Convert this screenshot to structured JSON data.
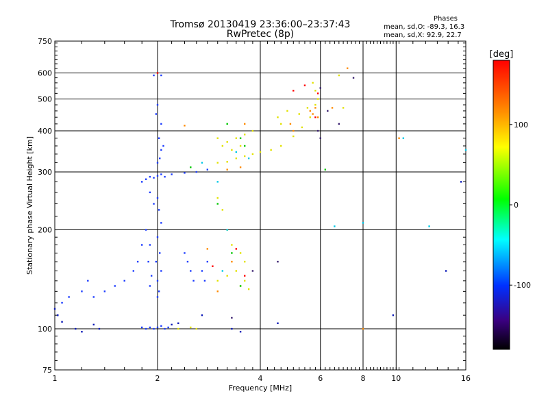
{
  "header": {
    "title": "Tromsø 20130419 23:36:00–23:37:43",
    "subtitle": "RwPretec (8p)"
  },
  "stats": {
    "heading": "Phases",
    "line_o": "mean, sd,O: -89.3, 16.3",
    "line_x": "mean, sd,X:  92.9, 22.7"
  },
  "chart_data": {
    "type": "scatter",
    "xlabel": "Frequency [MHz]",
    "ylabel": "Stationary phase Virtual Height [km]",
    "x_scale": "log",
    "y_scale": "log",
    "xlim": [
      1,
      16
    ],
    "ylim": [
      75,
      750
    ],
    "x_ticks": [
      1,
      2,
      4,
      6,
      8,
      10,
      16
    ],
    "x_tick_labels": [
      "1",
      "2",
      "4",
      "6",
      "8",
      "10",
      "16"
    ],
    "y_ticks": [
      75,
      100,
      200,
      300,
      400,
      500,
      600,
      750
    ],
    "y_tick_labels": [
      "75",
      "100",
      "200",
      "300",
      "400",
      "500",
      "600",
      "750"
    ],
    "grid": true,
    "colorbar": {
      "label": "[deg]",
      "range": [
        -180,
        180
      ],
      "ticks": [
        100,
        0,
        -100
      ],
      "tick_labels": [
        "100",
        "0",
        "-100"
      ]
    },
    "series": [
      {
        "color": "#1c3cff",
        "points": [
          [
            1.8,
            101
          ],
          [
            1.85,
            100
          ],
          [
            1.9,
            101
          ],
          [
            1.95,
            100
          ],
          [
            2.0,
            101
          ],
          [
            2.05,
            102
          ],
          [
            2.1,
            100
          ],
          [
            2.15,
            101
          ],
          [
            1.8,
            280
          ],
          [
            1.85,
            285
          ],
          [
            1.9,
            290
          ],
          [
            1.95,
            288
          ],
          [
            2.0,
            292
          ],
          [
            2.05,
            295
          ],
          [
            2.1,
            290
          ],
          [
            2.2,
            295
          ],
          [
            2.4,
            298
          ],
          [
            2.6,
            300
          ],
          [
            2.8,
            305
          ],
          [
            2.0,
            250
          ],
          [
            2.02,
            230
          ],
          [
            2.05,
            210
          ],
          [
            2.0,
            190
          ],
          [
            2.03,
            170
          ],
          [
            1.98,
            160
          ],
          [
            2.05,
            150
          ],
          [
            2.0,
            140
          ],
          [
            2.02,
            130
          ],
          [
            2.0,
            125
          ],
          [
            1.9,
            260
          ],
          [
            1.95,
            240
          ],
          [
            1.85,
            200
          ],
          [
            1.9,
            180
          ],
          [
            1.88,
            160
          ],
          [
            1.92,
            145
          ],
          [
            1.9,
            135
          ],
          [
            1.8,
            180
          ],
          [
            1.75,
            160
          ],
          [
            1.7,
            150
          ],
          [
            1.6,
            140
          ],
          [
            1.5,
            135
          ],
          [
            1.4,
            130
          ],
          [
            1.3,
            125
          ],
          [
            1.25,
            140
          ],
          [
            1.2,
            130
          ],
          [
            1.05,
            120
          ],
          [
            1.02,
            110
          ],
          [
            1.1,
            125
          ],
          [
            2.05,
            350
          ],
          [
            2.03,
            330
          ],
          [
            2.0,
            320
          ],
          [
            2.08,
            360
          ],
          [
            2.02,
            380
          ],
          [
            2.05,
            420
          ],
          [
            1.98,
            450
          ],
          [
            2.0,
            480
          ],
          [
            2.4,
            170
          ],
          [
            2.45,
            160
          ],
          [
            2.5,
            150
          ],
          [
            2.55,
            140
          ],
          [
            2.8,
            160
          ],
          [
            2.7,
            150
          ],
          [
            2.75,
            140
          ],
          [
            1.95,
            590
          ],
          [
            2.05,
            590
          ]
        ]
      },
      {
        "color": "#0a18b8",
        "points": [
          [
            1.0,
            115
          ],
          [
            1.02,
            110
          ],
          [
            1.05,
            105
          ],
          [
            1.15,
            100
          ],
          [
            1.2,
            98
          ],
          [
            1.35,
            100
          ],
          [
            1.3,
            103
          ],
          [
            3.3,
            100
          ],
          [
            3.5,
            98
          ],
          [
            2.2,
            103
          ],
          [
            2.3,
            104
          ],
          [
            2.7,
            110
          ],
          [
            4.5,
            104
          ],
          [
            9.8,
            110
          ],
          [
            14,
            150
          ],
          [
            15.5,
            280
          ]
        ]
      },
      {
        "color": "#e2e200",
        "points": [
          [
            3.0,
            320
          ],
          [
            3.2,
            322
          ],
          [
            3.4,
            330
          ],
          [
            3.6,
            335
          ],
          [
            3.8,
            340
          ],
          [
            4.0,
            345
          ],
          [
            4.3,
            350
          ],
          [
            4.6,
            360
          ],
          [
            5.0,
            385
          ],
          [
            5.3,
            410
          ],
          [
            5.6,
            440
          ],
          [
            5.8,
            480
          ],
          [
            5.9,
            500
          ],
          [
            5.8,
            530
          ],
          [
            5.7,
            560
          ],
          [
            3.0,
            380
          ],
          [
            3.2,
            370
          ],
          [
            3.4,
            380
          ],
          [
            3.6,
            390
          ],
          [
            3.8,
            400
          ],
          [
            3.1,
            360
          ],
          [
            3.3,
            350
          ],
          [
            3.5,
            360
          ],
          [
            3.0,
            250
          ],
          [
            3.1,
            230
          ],
          [
            3.2,
            200
          ],
          [
            3.3,
            180
          ],
          [
            3.5,
            170
          ],
          [
            3.6,
            160
          ],
          [
            3.4,
            150
          ],
          [
            3.2,
            145
          ],
          [
            3.0,
            140
          ],
          [
            3.5,
            135
          ],
          [
            3.7,
            132
          ],
          [
            3.6,
            140
          ],
          [
            2.3,
            100
          ],
          [
            2.5,
            101
          ],
          [
            2.6,
            100
          ],
          [
            4.5,
            440
          ],
          [
            4.6,
            420
          ],
          [
            4.8,
            460
          ],
          [
            5.2,
            450
          ],
          [
            5.5,
            470
          ],
          [
            6.8,
            590
          ],
          [
            7.0,
            470
          ]
        ]
      },
      {
        "color": "#ff8a00",
        "points": [
          [
            5.7,
            450
          ],
          [
            5.6,
            460
          ],
          [
            5.8,
            470
          ],
          [
            5.9,
            440
          ],
          [
            4.9,
            420
          ],
          [
            5.0,
            400
          ],
          [
            3.2,
            305
          ],
          [
            3.5,
            310
          ],
          [
            2.8,
            175
          ],
          [
            3.3,
            160
          ],
          [
            3.0,
            130
          ],
          [
            2.4,
            415
          ],
          [
            3.6,
            420
          ],
          [
            6.5,
            470
          ],
          [
            7.2,
            620
          ],
          [
            8.0,
            100
          ],
          [
            10.2,
            380
          ]
        ]
      },
      {
        "color": "#ff0000",
        "points": [
          [
            5.4,
            550
          ],
          [
            5.8,
            440
          ],
          [
            5.0,
            530
          ],
          [
            3.4,
            175
          ],
          [
            2.9,
            155
          ],
          [
            3.6,
            145
          ],
          [
            2.0,
            600
          ],
          [
            5.9,
            520
          ]
        ]
      },
      {
        "color": "#00c800",
        "points": [
          [
            3.5,
            380
          ],
          [
            3.6,
            360
          ],
          [
            3.2,
            420
          ],
          [
            3.0,
            240
          ],
          [
            3.3,
            170
          ],
          [
            3.5,
            135
          ],
          [
            6.2,
            305
          ],
          [
            2.5,
            310
          ]
        ]
      },
      {
        "color": "#00c8e6",
        "points": [
          [
            3.4,
            345
          ],
          [
            3.7,
            330
          ],
          [
            2.7,
            320
          ],
          [
            3.0,
            280
          ],
          [
            3.2,
            200
          ],
          [
            3.1,
            150
          ],
          [
            6.6,
            205
          ],
          [
            8.0,
            210
          ],
          [
            10.5,
            380
          ],
          [
            12.5,
            205
          ],
          [
            16,
            350
          ]
        ]
      },
      {
        "color": "#3a2070",
        "points": [
          [
            6.0,
            540
          ],
          [
            6.3,
            460
          ],
          [
            7.5,
            580
          ],
          [
            6.8,
            420
          ],
          [
            6.0,
            380
          ],
          [
            5.9,
            400
          ],
          [
            3.8,
            150
          ],
          [
            4.5,
            160
          ],
          [
            3.3,
            108
          ]
        ]
      }
    ]
  }
}
